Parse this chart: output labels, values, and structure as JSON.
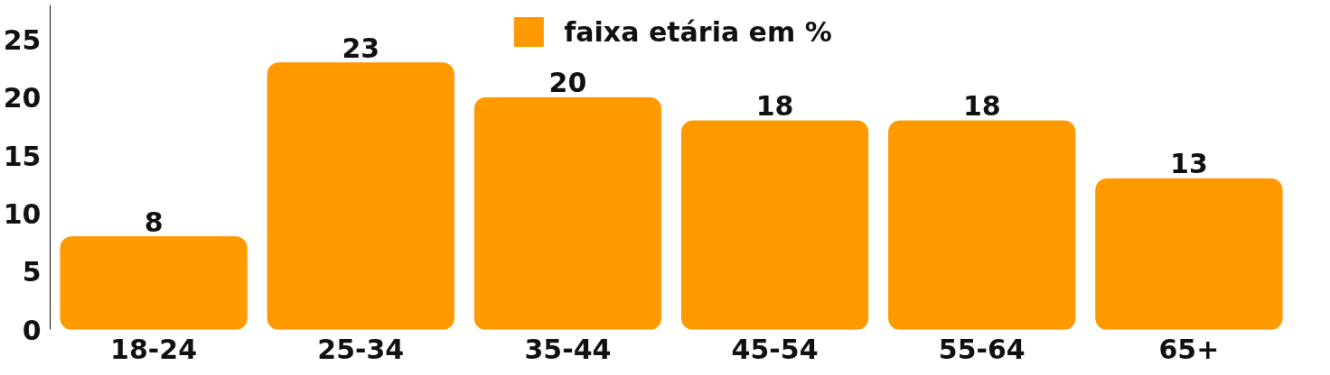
{
  "chart_data": {
    "type": "bar",
    "categories": [
      "18-24",
      "25-34",
      "35-44",
      "45-54",
      "55-64",
      "65+"
    ],
    "series": [
      {
        "name": "faixa etária em %",
        "color": "#ff9900",
        "values": [
          8,
          23,
          20,
          18,
          18,
          13
        ]
      }
    ],
    "ylim": [
      0,
      28
    ],
    "yticks": [
      0,
      5,
      10,
      15,
      20,
      25
    ],
    "data_labels": true,
    "grid": false,
    "legend": "top"
  }
}
